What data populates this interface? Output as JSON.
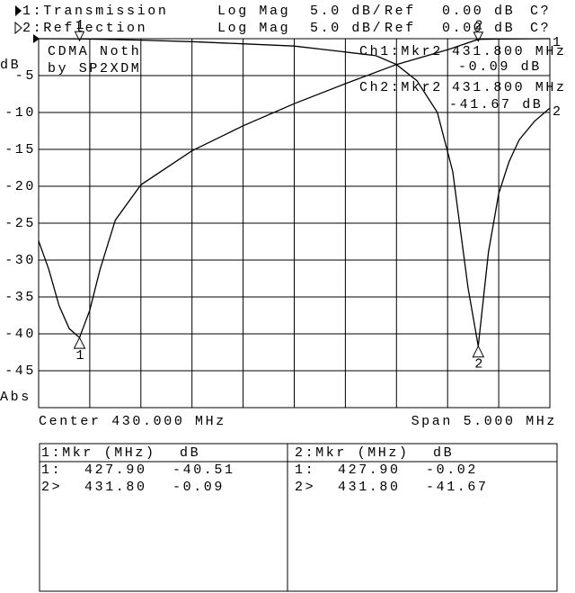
{
  "chart_data": {
    "type": "line",
    "xlim": [
      427.5,
      432.5
    ],
    "ylim": [
      -50,
      0
    ],
    "yticks": [
      -5,
      -10,
      -15,
      -20,
      -25,
      -30,
      -35,
      -40,
      -45
    ],
    "x_divisions": 10,
    "grid": true,
    "y_unit": "dB",
    "y_mode": "Abs",
    "center": "Center 430.000 MHz",
    "span": "Span 5.000 MHz",
    "notes": [
      "CDMA Noth",
      "by SP2XDM"
    ],
    "marker_labels": [
      "1",
      "2"
    ],
    "marker_readouts": [
      {
        "label": "Ch1:Mkr2",
        "freq": "431.800 MHz",
        "value": "-0.09 dB"
      },
      {
        "label": "Ch2:Mkr2",
        "freq": "431.800 MHz",
        "value": "-41.67 dB"
      }
    ],
    "series": [
      {
        "name": "1:Transmission",
        "format": "Log Mag",
        "scale": "5.0 dB/",
        "ref_label": "Ref",
        "ref": "0.00 dB",
        "cal": "C?",
        "end_label": "1",
        "color": "#000000",
        "x": [
          427.5,
          427.6,
          427.7,
          427.8,
          427.9,
          428.0,
          428.1,
          428.25,
          428.5,
          429.0,
          429.5,
          430.0,
          430.5,
          431.0,
          431.5,
          431.8,
          432.0,
          432.5
        ],
        "values": [
          -27.4,
          -31.3,
          -36.2,
          -39.3,
          -40.51,
          -36.8,
          -31.3,
          -24.6,
          -19.8,
          -15.2,
          -11.8,
          -8.8,
          -6.1,
          -3.5,
          -1.5,
          -0.09,
          -0.05,
          0
        ],
        "marker_x": [
          427.9,
          431.8
        ],
        "marker_values": [
          -40.51,
          -0.09
        ]
      },
      {
        "name": "2:Reflection",
        "format": "Log Mag",
        "scale": "5.0 dB/",
        "ref_label": "Ref",
        "ref": "0.00 dB",
        "cal": "C?",
        "end_label": "2",
        "color": "#000000",
        "x": [
          427.5,
          427.9,
          428.5,
          429.0,
          429.5,
          430.0,
          430.5,
          430.8,
          431.0,
          431.2,
          431.4,
          431.55,
          431.7,
          431.8,
          431.9,
          432.0,
          432.1,
          432.2,
          432.35,
          432.5
        ],
        "values": [
          0,
          -0.02,
          -0.2,
          -0.4,
          -0.7,
          -1.0,
          -1.8,
          -2.3,
          -3.5,
          -5.7,
          -10,
          -18,
          -33.8,
          -41.67,
          -28.9,
          -21,
          -16.7,
          -13.7,
          -11.2,
          -9.4
        ],
        "marker_x": [
          427.9,
          431.8
        ],
        "marker_values": [
          -0.02,
          -41.67
        ]
      }
    ]
  },
  "marker_table": [
    {
      "header": "1:Mkr (MHz)",
      "unit": "dB",
      "rows": [
        [
          "1:",
          "427.90",
          "-40.51"
        ],
        [
          "2>",
          "431.80",
          "-0.09"
        ]
      ]
    },
    {
      "header": "2:Mkr (MHz)",
      "unit": "dB",
      "rows": [
        [
          "1:",
          "427.90",
          "-0.02"
        ],
        [
          "2>",
          "431.80",
          "-41.67"
        ]
      ]
    }
  ]
}
